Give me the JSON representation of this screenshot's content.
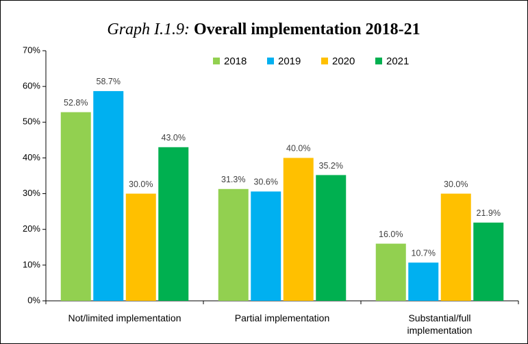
{
  "chart_data": {
    "type": "bar",
    "title_label": "Graph I.1.9:",
    "title": "Overall implementation 2018-21",
    "categories": [
      "Not/limited implementation",
      "Partial implementation",
      "Substantial/full implementation"
    ],
    "series": [
      {
        "name": "2018",
        "color": "#92d050",
        "values": [
          52.8,
          31.3,
          16.0
        ],
        "value_labels": [
          "52.8%",
          "31.3%",
          "16.0%"
        ]
      },
      {
        "name": "2019",
        "color": "#00b0f0",
        "values": [
          58.7,
          30.6,
          10.7
        ],
        "value_labels": [
          "58.7%",
          "30.6%",
          "10.7%"
        ]
      },
      {
        "name": "2020",
        "color": "#ffc000",
        "values": [
          30.0,
          40.0,
          30.0
        ],
        "value_labels": [
          "30.0%",
          "40.0%",
          "30.0%"
        ]
      },
      {
        "name": "2021",
        "color": "#00b050",
        "values": [
          43.0,
          35.2,
          21.9
        ],
        "value_labels": [
          "43.0%",
          "35.2%",
          "21.9%"
        ]
      }
    ],
    "ylim": [
      0,
      70
    ],
    "yticks": [
      {
        "value": 0,
        "label": "0%"
      },
      {
        "value": 10,
        "label": "10%"
      },
      {
        "value": 20,
        "label": "20%"
      },
      {
        "value": 30,
        "label": "30%"
      },
      {
        "value": 40,
        "label": "40%"
      },
      {
        "value": 50,
        "label": "50%"
      },
      {
        "value": 60,
        "label": "60%"
      },
      {
        "value": 70,
        "label": "70%"
      }
    ],
    "legend": "top"
  }
}
